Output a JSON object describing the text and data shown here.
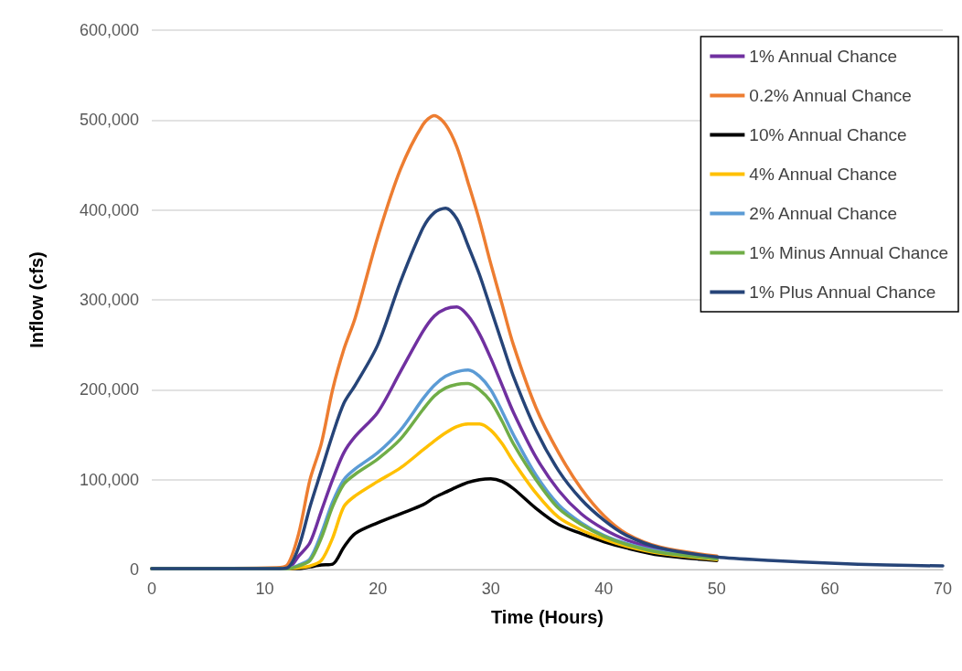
{
  "chart_data": {
    "type": "line",
    "xlabel": "Time (Hours)",
    "ylabel": "Inflow (cfs)",
    "x": [
      0,
      11,
      12,
      13,
      14,
      15,
      16,
      17,
      18,
      20,
      22,
      24,
      25,
      26,
      27,
      28,
      29,
      30,
      31,
      32,
      34,
      36,
      38,
      40,
      42,
      45,
      50,
      55,
      60,
      65,
      70
    ],
    "xlim": [
      0,
      70
    ],
    "xticks": [
      0,
      10,
      20,
      30,
      40,
      50,
      60,
      70
    ],
    "ylim": [
      0,
      600000
    ],
    "yticks": [
      0,
      {
        "value": 100000,
        "label": "100,000"
      },
      {
        "value": 200000,
        "label": "200,000"
      },
      {
        "value": 300000,
        "label": "300,000"
      },
      {
        "value": 400000,
        "label": "400,000"
      },
      {
        "value": 500000,
        "label": "500,000"
      },
      {
        "value": 600000,
        "label": "600,000"
      }
    ],
    "grid": "y",
    "legend": "top right",
    "marker": "none",
    "line_style": "solid",
    "series": [
      {
        "name": "1% Annual Chance",
        "color": "#7030a0",
        "values": [
          1000,
          1000,
          1000,
          15000,
          30000,
          65000,
          100000,
          130000,
          148000,
          175000,
          220000,
          265000,
          282000,
          290000,
          292000,
          282000,
          262000,
          235000,
          205000,
          175000,
          125000,
          88000,
          62000,
          45000,
          33000,
          22000,
          13000,
          null,
          null,
          null,
          null
        ]
      },
      {
        "name": "0.2% Annual Chance",
        "color": "#ed7d31",
        "values": [
          1000,
          2000,
          5000,
          40000,
          100000,
          140000,
          200000,
          245000,
          280000,
          370000,
          445000,
          495000,
          505000,
          495000,
          470000,
          430000,
          388000,
          340000,
          295000,
          250000,
          180000,
          130000,
          90000,
          60000,
          40000,
          25000,
          15000,
          null,
          null,
          null,
          null
        ]
      },
      {
        "name": "10% Annual Chance",
        "color": "#000000",
        "values": [
          1000,
          1000,
          1000,
          1000,
          3000,
          5000,
          6000,
          25000,
          40000,
          52000,
          62000,
          72000,
          80000,
          86000,
          92000,
          97000,
          100000,
          101000,
          98000,
          90000,
          68000,
          50000,
          40000,
          31000,
          24000,
          16000,
          10000,
          null,
          null,
          null,
          null
        ]
      },
      {
        "name": "4% Annual Chance",
        "color": "#ffc000",
        "values": [
          1000,
          1000,
          1000,
          2000,
          4000,
          10000,
          35000,
          70000,
          82000,
          98000,
          113000,
          133000,
          143000,
          152000,
          159000,
          162000,
          162000,
          155000,
          140000,
          120000,
          85000,
          58000,
          44000,
          34000,
          26000,
          18000,
          11000,
          null,
          null,
          null,
          null
        ]
      },
      {
        "name": "2% Annual Chance",
        "color": "#5b9bd5",
        "values": [
          1000,
          1000,
          1000,
          5000,
          12000,
          40000,
          75000,
          100000,
          112000,
          130000,
          155000,
          190000,
          205000,
          215000,
          220000,
          222000,
          215000,
          200000,
          176000,
          150000,
          105000,
          72000,
          52000,
          38000,
          29000,
          20000,
          12000,
          null,
          null,
          null,
          null
        ]
      },
      {
        "name": "1% Minus Annual Chance",
        "color": "#70ad47",
        "values": [
          1000,
          1000,
          1000,
          4000,
          10000,
          35000,
          70000,
          95000,
          106000,
          123000,
          145000,
          178000,
          193000,
          202000,
          206000,
          207000,
          200000,
          187000,
          165000,
          140000,
          100000,
          68000,
          50000,
          37000,
          28000,
          19000,
          12000,
          null,
          null,
          null,
          null
        ]
      },
      {
        "name": "1% Plus Annual Chance",
        "color": "#264478",
        "values": [
          1000,
          1000,
          2000,
          25000,
          70000,
          110000,
          150000,
          185000,
          205000,
          250000,
          320000,
          380000,
          397000,
          402000,
          390000,
          360000,
          328000,
          290000,
          252000,
          215000,
          155000,
          110000,
          78000,
          55000,
          38000,
          24000,
          14000,
          10000,
          7000,
          5000,
          4000
        ]
      }
    ]
  }
}
